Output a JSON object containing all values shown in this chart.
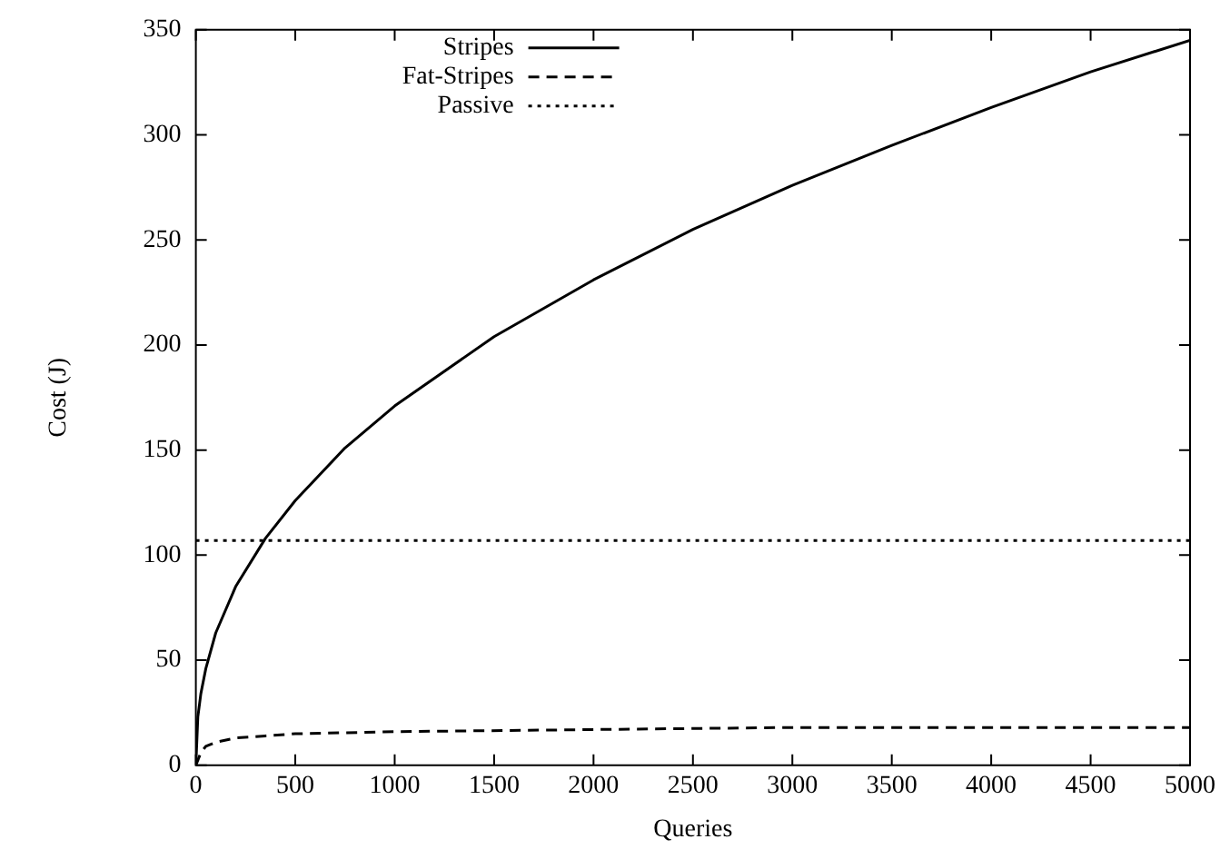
{
  "chart_data": {
    "type": "line",
    "xlabel": "Queries",
    "ylabel": "Cost (J)",
    "xlim": [
      0,
      5000
    ],
    "ylim": [
      0,
      350
    ],
    "xticks": [
      0,
      500,
      1000,
      1500,
      2000,
      2500,
      3000,
      3500,
      4000,
      4500,
      5000
    ],
    "yticks": [
      0,
      50,
      100,
      150,
      200,
      250,
      300,
      350
    ],
    "legend": "top left",
    "marker": "none",
    "series": [
      {
        "name": "Stripes",
        "color": "#000000",
        "line_style": "solid",
        "x": [
          0,
          10,
          25,
          50,
          100,
          200,
          350,
          500,
          750,
          1000,
          1500,
          2000,
          2500,
          3000,
          3500,
          4000,
          4500,
          5000
        ],
        "values": [
          0,
          23,
          34,
          46,
          63,
          85,
          108,
          126,
          151,
          171,
          204,
          231,
          255,
          276,
          295,
          313,
          330,
          345
        ]
      },
      {
        "name": "Fat-Stripes",
        "color": "#000000",
        "line_style": "dashed",
        "x": [
          0,
          25,
          50,
          100,
          200,
          350,
          500,
          1000,
          2000,
          3000,
          4000,
          5000
        ],
        "values": [
          0,
          6,
          9,
          11,
          13,
          14,
          15,
          16,
          17,
          18,
          18,
          18
        ]
      },
      {
        "name": "Passive",
        "color": "#000000",
        "line_style": "dotted",
        "x": [
          0,
          5000
        ],
        "values": [
          107,
          107
        ]
      }
    ]
  }
}
